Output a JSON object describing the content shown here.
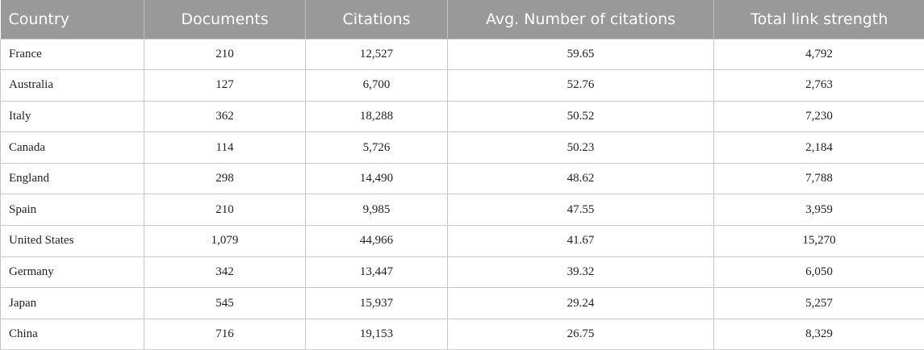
{
  "table": {
    "headers": [
      "Country",
      "Documents",
      "Citations",
      "Avg. Number of citations",
      "Total link strength"
    ],
    "rows": [
      [
        "France",
        "210",
        "12,527",
        "59.65",
        "4,792"
      ],
      [
        "Australia",
        "127",
        "6,700",
        "52.76",
        "2,763"
      ],
      [
        "Italy",
        "362",
        "18,288",
        "50.52",
        "7,230"
      ],
      [
        "Canada",
        "114",
        "5,726",
        "50.23",
        "2,184"
      ],
      [
        "England",
        "298",
        "14,490",
        "48.62",
        "7,788"
      ],
      [
        "Spain",
        "210",
        "9,985",
        "47.55",
        "3,959"
      ],
      [
        "United States",
        "1,079",
        "44,966",
        "41.67",
        "15,270"
      ],
      [
        "Germany",
        "342",
        "13,447",
        "39.32",
        "6,050"
      ],
      [
        "Japan",
        "545",
        "15,937",
        "29.24",
        "5,257"
      ],
      [
        "China",
        "716",
        "19,153",
        "26.75",
        "8,329"
      ]
    ]
  }
}
